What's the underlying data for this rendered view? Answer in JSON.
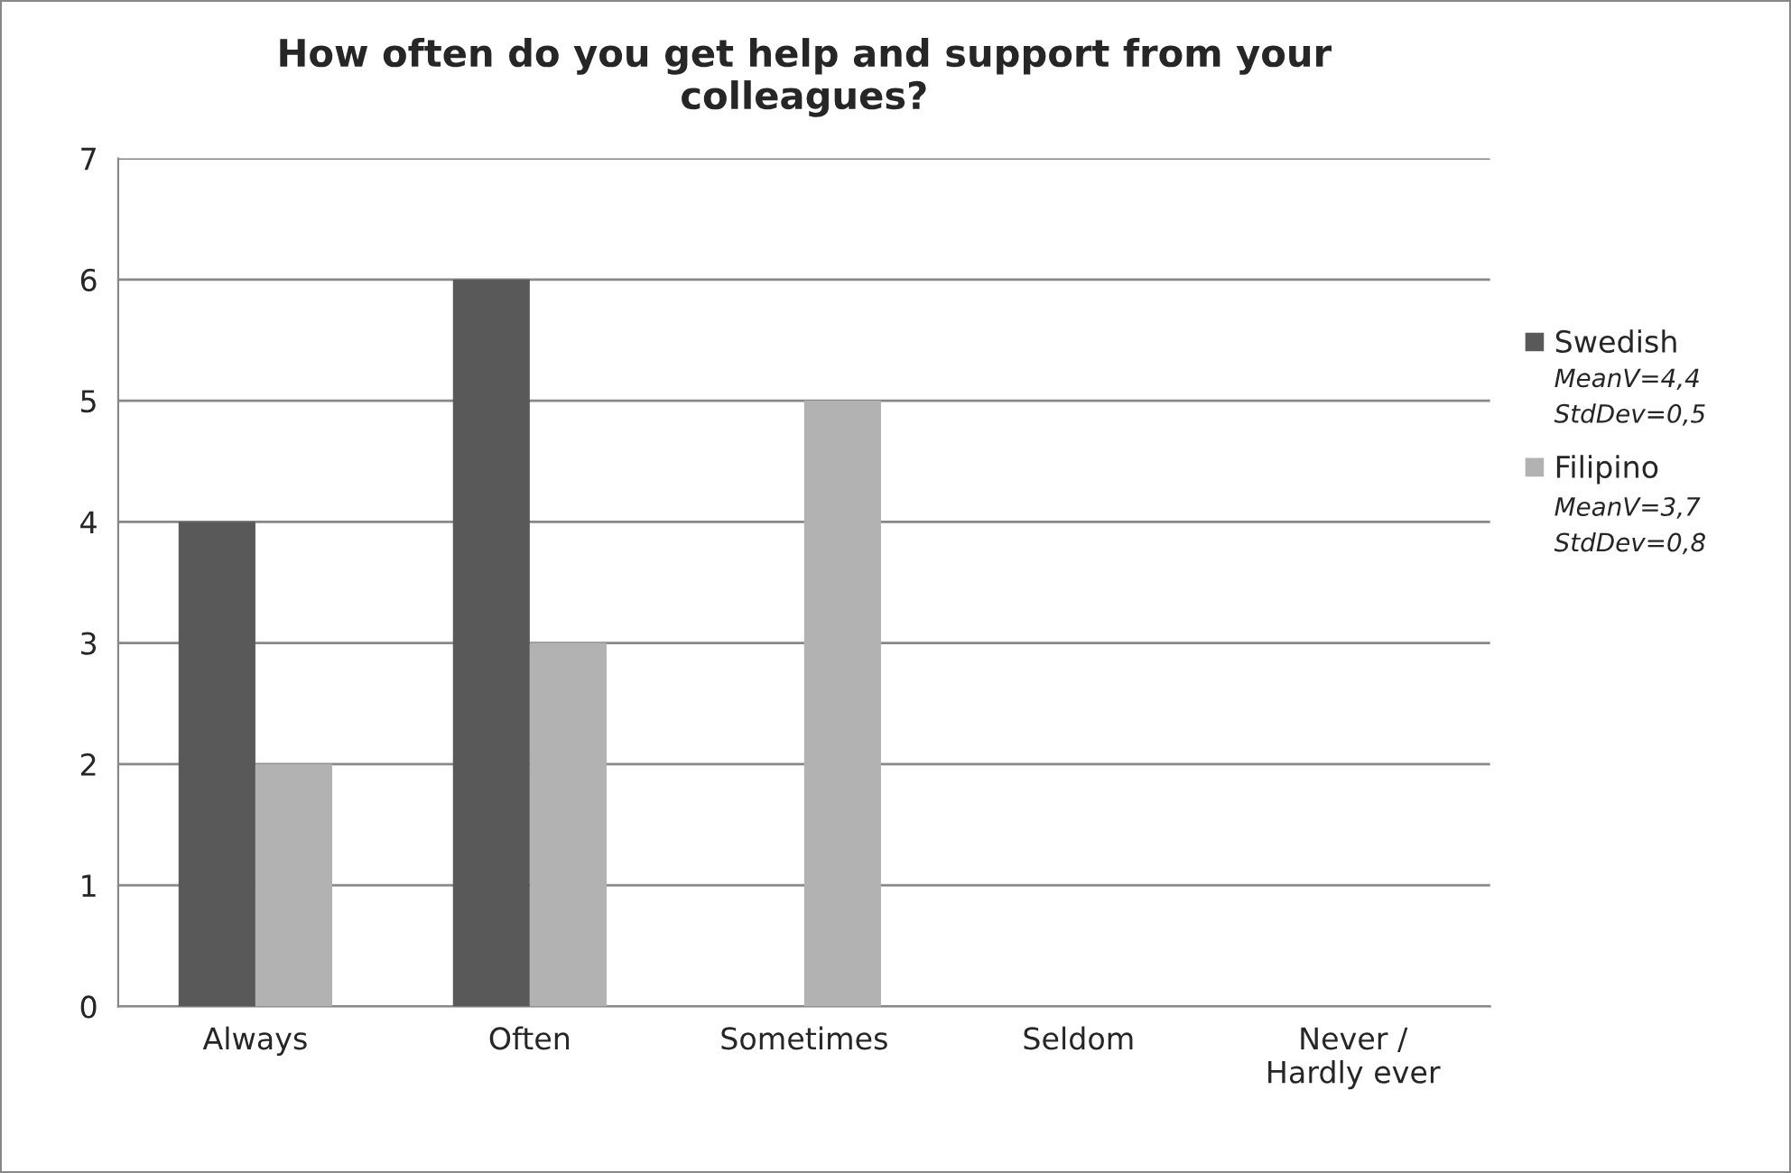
{
  "chart_data": {
    "type": "bar",
    "title": "How often do you get help and support from your\ncolleagues?",
    "categories": [
      "Always",
      "Often",
      "Sometimes",
      "Seldom",
      "Never /\nHardly ever"
    ],
    "series": [
      {
        "name": "Swedish",
        "color": "#595959",
        "values": [
          4,
          6,
          0,
          0,
          0
        ]
      },
      {
        "name": "Filipino",
        "color": "#b2b2b2",
        "values": [
          2,
          3,
          5,
          0,
          0
        ]
      }
    ],
    "annotations": [
      "MeanV=4,4\nStdDev=0,5",
      "MeanV=3,7\nStdDev=0,8"
    ],
    "ylim": [
      0,
      7
    ],
    "yticks": [
      0,
      1,
      2,
      3,
      4,
      5,
      6,
      7
    ],
    "grid": "y",
    "legend": "right"
  }
}
